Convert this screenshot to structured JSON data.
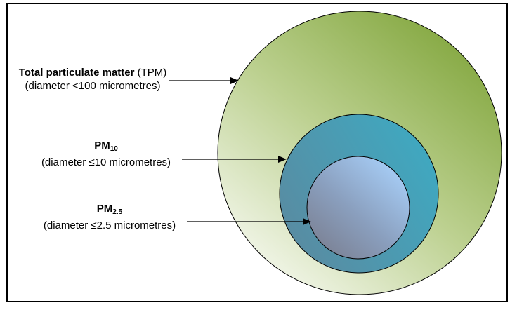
{
  "colors": {
    "outer": "#8aac4a",
    "middle": "#3fa3b8",
    "inner": "#9cc4ee",
    "border": "#000000"
  },
  "labels": {
    "tpm": {
      "name": "Total particulate matter",
      "abbr": "(TPM)",
      "range": "(diameter <100 micrometres)"
    },
    "pm10": {
      "prefix": "PM",
      "subscript": "10",
      "range": "(diameter ≤10 micrometres)"
    },
    "pm25": {
      "prefix": "PM",
      "subscript": "2.5",
      "range": "(diameter ≤2.5 micrometres)"
    }
  }
}
